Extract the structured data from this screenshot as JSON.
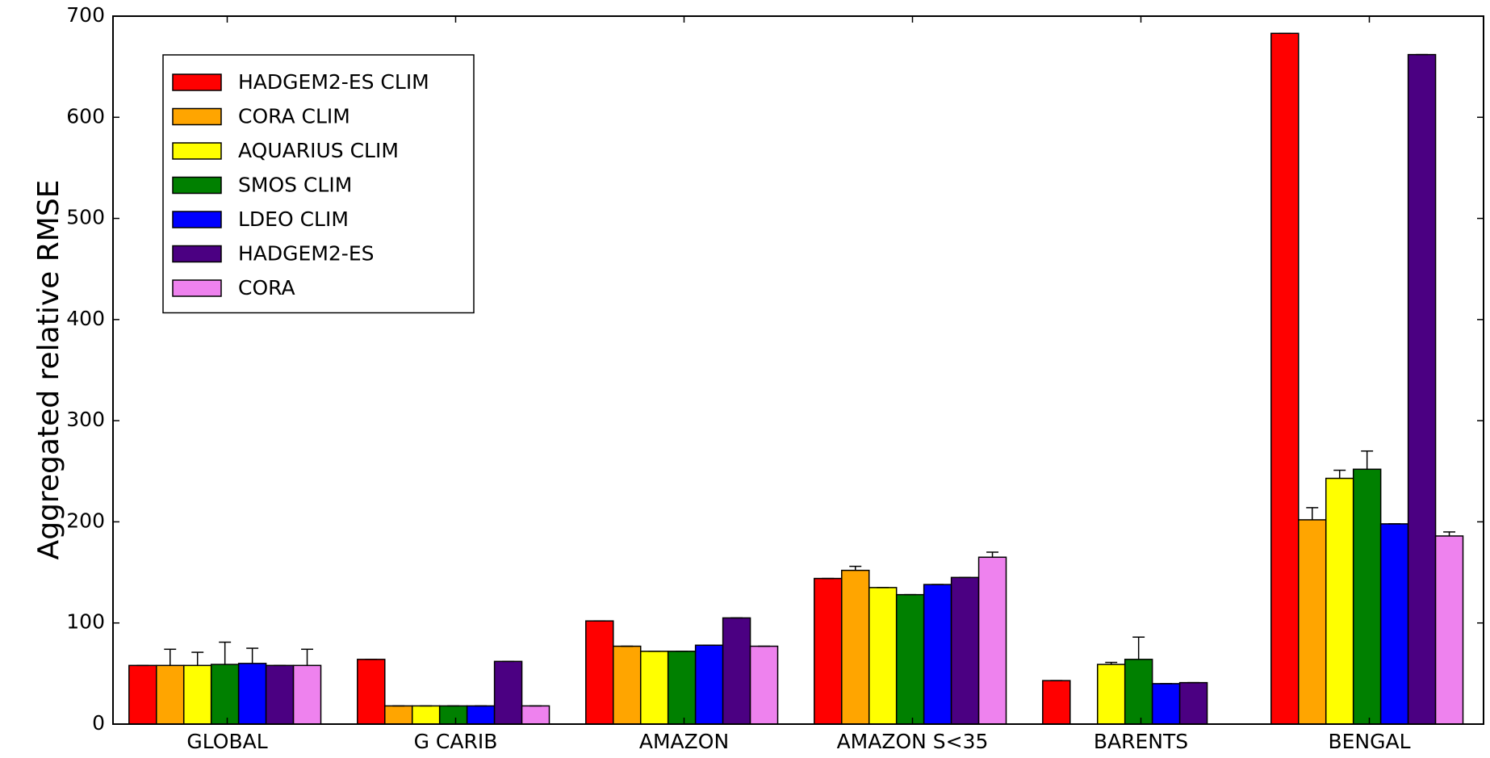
{
  "chart_data": {
    "type": "bar",
    "ylabel": "Aggregated relative RMSE",
    "xlabel": "",
    "ylim": [
      0,
      700
    ],
    "yticks": [
      0,
      100,
      200,
      300,
      400,
      500,
      600,
      700
    ],
    "categories": [
      "GLOBAL",
      "G CARIB",
      "AMAZON",
      "AMAZON S<35",
      "BARENTS",
      "BENGAL"
    ],
    "legend_position": "top-left",
    "grid": false,
    "series": [
      {
        "name": "HADGEM2-ES CLIM",
        "color": "#ff0000",
        "values": [
          58,
          64,
          102,
          144,
          43,
          683
        ],
        "err": [
          0,
          0,
          0,
          0,
          0,
          0
        ]
      },
      {
        "name": "CORA CLIM",
        "color": "#ffa500",
        "values": [
          58,
          18,
          77,
          152,
          null,
          202
        ],
        "err": [
          16,
          0,
          0,
          4,
          null,
          12
        ]
      },
      {
        "name": "AQUARIUS CLIM",
        "color": "#ffff00",
        "values": [
          58,
          18,
          72,
          135,
          59,
          243
        ],
        "err": [
          13,
          0,
          0,
          0,
          2,
          8
        ]
      },
      {
        "name": "SMOS CLIM",
        "color": "#008000",
        "values": [
          59,
          18,
          72,
          128,
          64,
          252
        ],
        "err": [
          22,
          0,
          0,
          0,
          22,
          18
        ]
      },
      {
        "name": "LDEO CLIM",
        "color": "#0000ff",
        "values": [
          60,
          18,
          78,
          138,
          40,
          198
        ],
        "err": [
          15,
          0,
          0,
          0,
          0,
          0
        ]
      },
      {
        "name": "HADGEM2-ES",
        "color": "#4b0082",
        "values": [
          58,
          62,
          105,
          145,
          41,
          662
        ],
        "err": [
          0,
          0,
          0,
          0,
          0,
          0
        ]
      },
      {
        "name": "CORA",
        "color": "#ee82ee",
        "values": [
          58,
          18,
          77,
          165,
          null,
          186
        ],
        "err": [
          16,
          0,
          0,
          5,
          null,
          4
        ]
      }
    ]
  }
}
